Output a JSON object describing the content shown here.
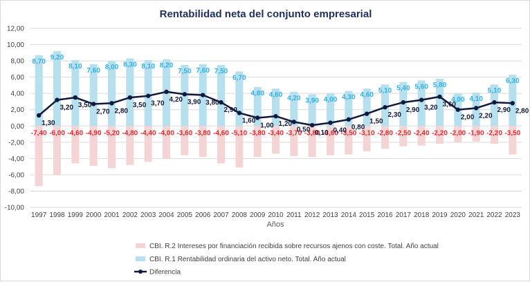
{
  "chart_data": {
    "type": "bar",
    "title": "Rentabilidad neta del conjunto empresarial",
    "xlabel": "Años",
    "ylabel": "",
    "ylim": [
      -10,
      12
    ],
    "yticks": [
      "12,00",
      "10,00",
      "8,00",
      "6,00",
      "4,00",
      "2,00",
      "0,00",
      "-2,00",
      "-4,00",
      "-6,00",
      "-8,00",
      "-10,00"
    ],
    "ytick_values": [
      12,
      10,
      8,
      6,
      4,
      2,
      0,
      -2,
      -4,
      -6,
      -8,
      -10
    ],
    "grid": true,
    "legend_placement": "bottom",
    "categories": [
      "1997",
      "1998",
      "1999",
      "2000",
      "2001",
      "2002",
      "2003",
      "2004",
      "2005",
      "2006",
      "2007",
      "2008",
      "2009",
      "2010",
      "2011",
      "2012",
      "2013",
      "2014",
      "2015",
      "2016",
      "2017",
      "2018",
      "2019",
      "2020",
      "2021",
      "2022",
      "2023"
    ],
    "series": [
      {
        "name": "CBI. R.2 Intereses por financiación recibida sobre recursos ajenos con coste. Total. Año actual",
        "kind": "bar",
        "color": "#f4d4d4",
        "label_color": "#e8282b",
        "values": [
          -7.4,
          -6.0,
          -4.6,
          -4.9,
          -5.2,
          -4.8,
          -4.4,
          -4.0,
          -3.6,
          -3.8,
          -4.6,
          -5.1,
          -3.8,
          -3.4,
          -3.7,
          -3.8,
          -3.6,
          -3.5,
          -3.1,
          -2.8,
          -2.5,
          -2.4,
          -2.2,
          -2.0,
          -1.9,
          -2.2,
          -3.5
        ],
        "labels": [
          "-7,40",
          "-6,00",
          "-4,60",
          "-4,90",
          "-5,20",
          "-4,80",
          "-4,40",
          "-4,00",
          "-3,60",
          "-3,80",
          "-4,60",
          "-5,10",
          "-3,80",
          "-3,40",
          "-3,70",
          "-3,80",
          "-3,60",
          "-3,50",
          "-3,10",
          "-2,80",
          "-2,50",
          "-2,40",
          "-2,20",
          "-2,00",
          "-1,90",
          "-2,20",
          "-3,50"
        ]
      },
      {
        "name": "CBI. R.1 Rentabilidad ordinaria del activo neto. Total. Año actual",
        "kind": "bar",
        "color": "#b7e0ee",
        "label_color": "#2eb0e8",
        "values": [
          8.7,
          9.2,
          8.1,
          7.6,
          8.0,
          8.3,
          8.1,
          8.2,
          7.5,
          7.6,
          7.5,
          6.7,
          4.8,
          4.6,
          4.2,
          3.9,
          4.0,
          4.3,
          4.6,
          5.1,
          5.4,
          5.6,
          5.8,
          4.0,
          4.1,
          5.1,
          6.3
        ],
        "labels": [
          "8,70",
          "9,20",
          "8,10",
          "7,60",
          "8,00",
          "8,30",
          "8,10",
          "8,20",
          "7,50",
          "7,60",
          "7,50",
          "6,70",
          "4,80",
          "4,60",
          "4,20",
          "3,90",
          "4,00",
          "4,30",
          "4,60",
          "5,10",
          "5,40",
          "5,60",
          "5,80",
          "4,00",
          "4,10",
          "5,10",
          "6,30"
        ]
      },
      {
        "name": "Diferencia",
        "kind": "line",
        "color": "#111a3c",
        "values": [
          1.3,
          3.2,
          3.5,
          2.7,
          2.8,
          3.5,
          3.7,
          4.2,
          3.9,
          3.8,
          2.9,
          1.6,
          1.0,
          1.2,
          0.5,
          0.1,
          0.4,
          0.8,
          1.5,
          2.3,
          2.9,
          3.2,
          3.6,
          2.0,
          2.2,
          2.9,
          2.8
        ],
        "labels": [
          "1,30",
          "3,20",
          "3,50",
          "2,70",
          "2,80",
          "3,50",
          "3,70",
          "4,20",
          "3,90",
          "3,80",
          "2,90",
          "1,60",
          "1,00",
          "1,20",
          "0,50",
          "0,10",
          "0,40",
          "0,80",
          "1,50",
          "2,30",
          "2,90",
          "3,20",
          "3,60",
          "2,00",
          "2,20",
          "2,90",
          "2,80"
        ]
      }
    ]
  }
}
